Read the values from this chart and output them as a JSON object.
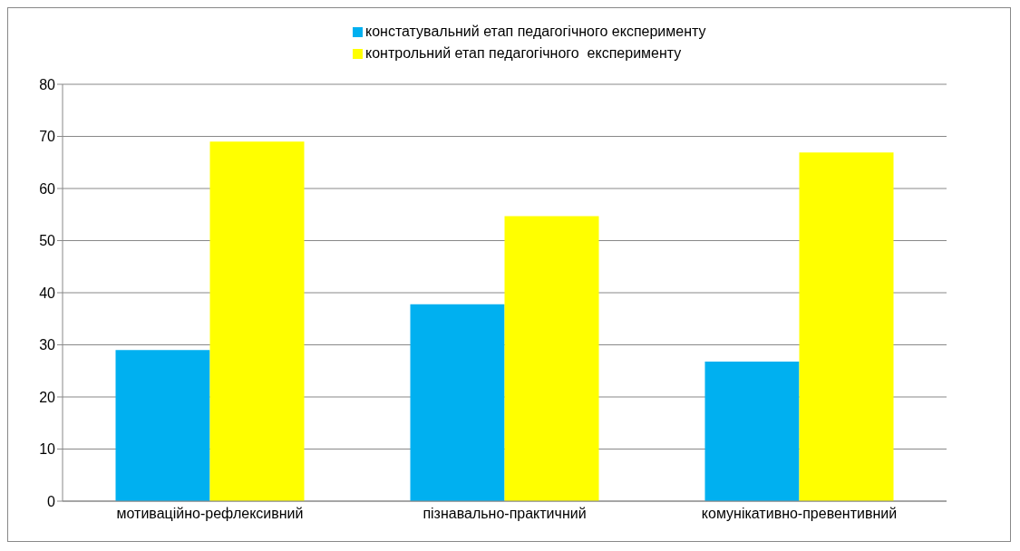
{
  "chart_data": {
    "type": "bar",
    "categories": [
      "мотиваційно-рефлексивний",
      "пізнавально-практичний",
      "комунікативно-превентивний"
    ],
    "series": [
      {
        "name": "констатувальний етап педагогічного експерименту",
        "color": "#00b0f0",
        "values": [
          29,
          37.8,
          26.8
        ]
      },
      {
        "name": "контрольний етап педагогічного  експерименту",
        "color": "#ffff00",
        "values": [
          69,
          54.7,
          66.9
        ]
      }
    ],
    "ylim": [
      0,
      80
    ],
    "yticks": [
      0,
      10,
      20,
      30,
      40,
      50,
      60,
      70,
      80
    ],
    "grid": "y",
    "legend": "top"
  }
}
